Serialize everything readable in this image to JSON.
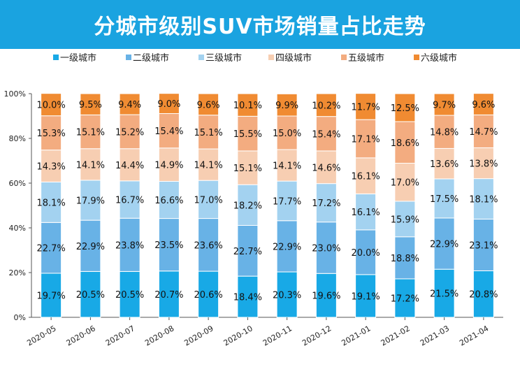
{
  "chart_data": {
    "type": "bar",
    "stacked": true,
    "title": "分城市级别SUV市场销量占比走势",
    "categories": [
      "2020-05",
      "2020-06",
      "2020-07",
      "2020-08",
      "2020-09",
      "2020-10",
      "2020-11",
      "2020-12",
      "2021-01",
      "2021-02",
      "2021-03",
      "2021-04"
    ],
    "series": [
      {
        "name": "一级城市",
        "color": "#18a9e6",
        "values": [
          19.7,
          20.5,
          20.5,
          20.7,
          20.6,
          18.4,
          20.3,
          19.6,
          19.1,
          17.2,
          21.5,
          20.8
        ]
      },
      {
        "name": "二级城市",
        "color": "#68b2e6",
        "values": [
          22.7,
          22.9,
          23.8,
          23.5,
          23.6,
          22.7,
          22.9,
          23.0,
          20.0,
          18.8,
          22.9,
          23.1
        ]
      },
      {
        "name": "三级城市",
        "color": "#a3d2f0",
        "values": [
          18.1,
          17.9,
          16.7,
          16.6,
          17.0,
          18.2,
          17.7,
          17.2,
          16.1,
          15.9,
          17.5,
          18.1
        ]
      },
      {
        "name": "四级城市",
        "color": "#f7ceb2",
        "values": [
          14.3,
          14.1,
          14.4,
          14.9,
          14.1,
          15.1,
          14.1,
          14.6,
          16.1,
          17.0,
          13.6,
          13.8
        ]
      },
      {
        "name": "五级城市",
        "color": "#f3ac80",
        "values": [
          15.3,
          15.1,
          15.2,
          15.4,
          15.1,
          15.5,
          15.0,
          15.4,
          17.1,
          18.6,
          14.8,
          14.7
        ]
      },
      {
        "name": "六级城市",
        "color": "#f08b32",
        "values": [
          10.0,
          9.5,
          9.4,
          9.0,
          9.6,
          10.1,
          9.9,
          10.2,
          11.7,
          12.5,
          9.7,
          9.6
        ]
      }
    ],
    "yticks": [
      "0%",
      "20%",
      "40%",
      "60%",
      "80%",
      "100%"
    ],
    "ylim": [
      0,
      100
    ],
    "legend_position": "top",
    "grid": false
  }
}
